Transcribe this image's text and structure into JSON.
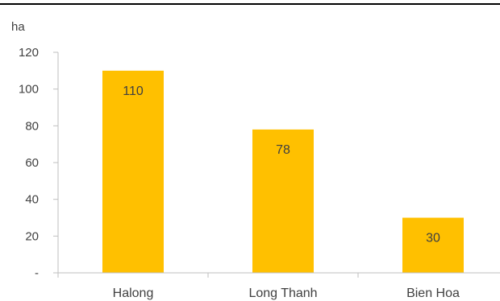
{
  "chart_data": {
    "type": "bar",
    "title": "",
    "unit_label": "ha",
    "xlabel": "",
    "ylabel": "",
    "categories": [
      "Halong",
      "Long Thanh",
      "Bien Hoa"
    ],
    "values": [
      110,
      78,
      30
    ],
    "data_labels": [
      "110",
      "78",
      "30"
    ],
    "ylim": [
      0,
      120
    ],
    "yticks": [
      0,
      20,
      40,
      60,
      80,
      100,
      120
    ],
    "ytick_labels": [
      "-",
      "20",
      "40",
      "60",
      "80",
      "100",
      "120"
    ],
    "bar_color": "#FFC000",
    "grid": false,
    "legend": "none"
  }
}
